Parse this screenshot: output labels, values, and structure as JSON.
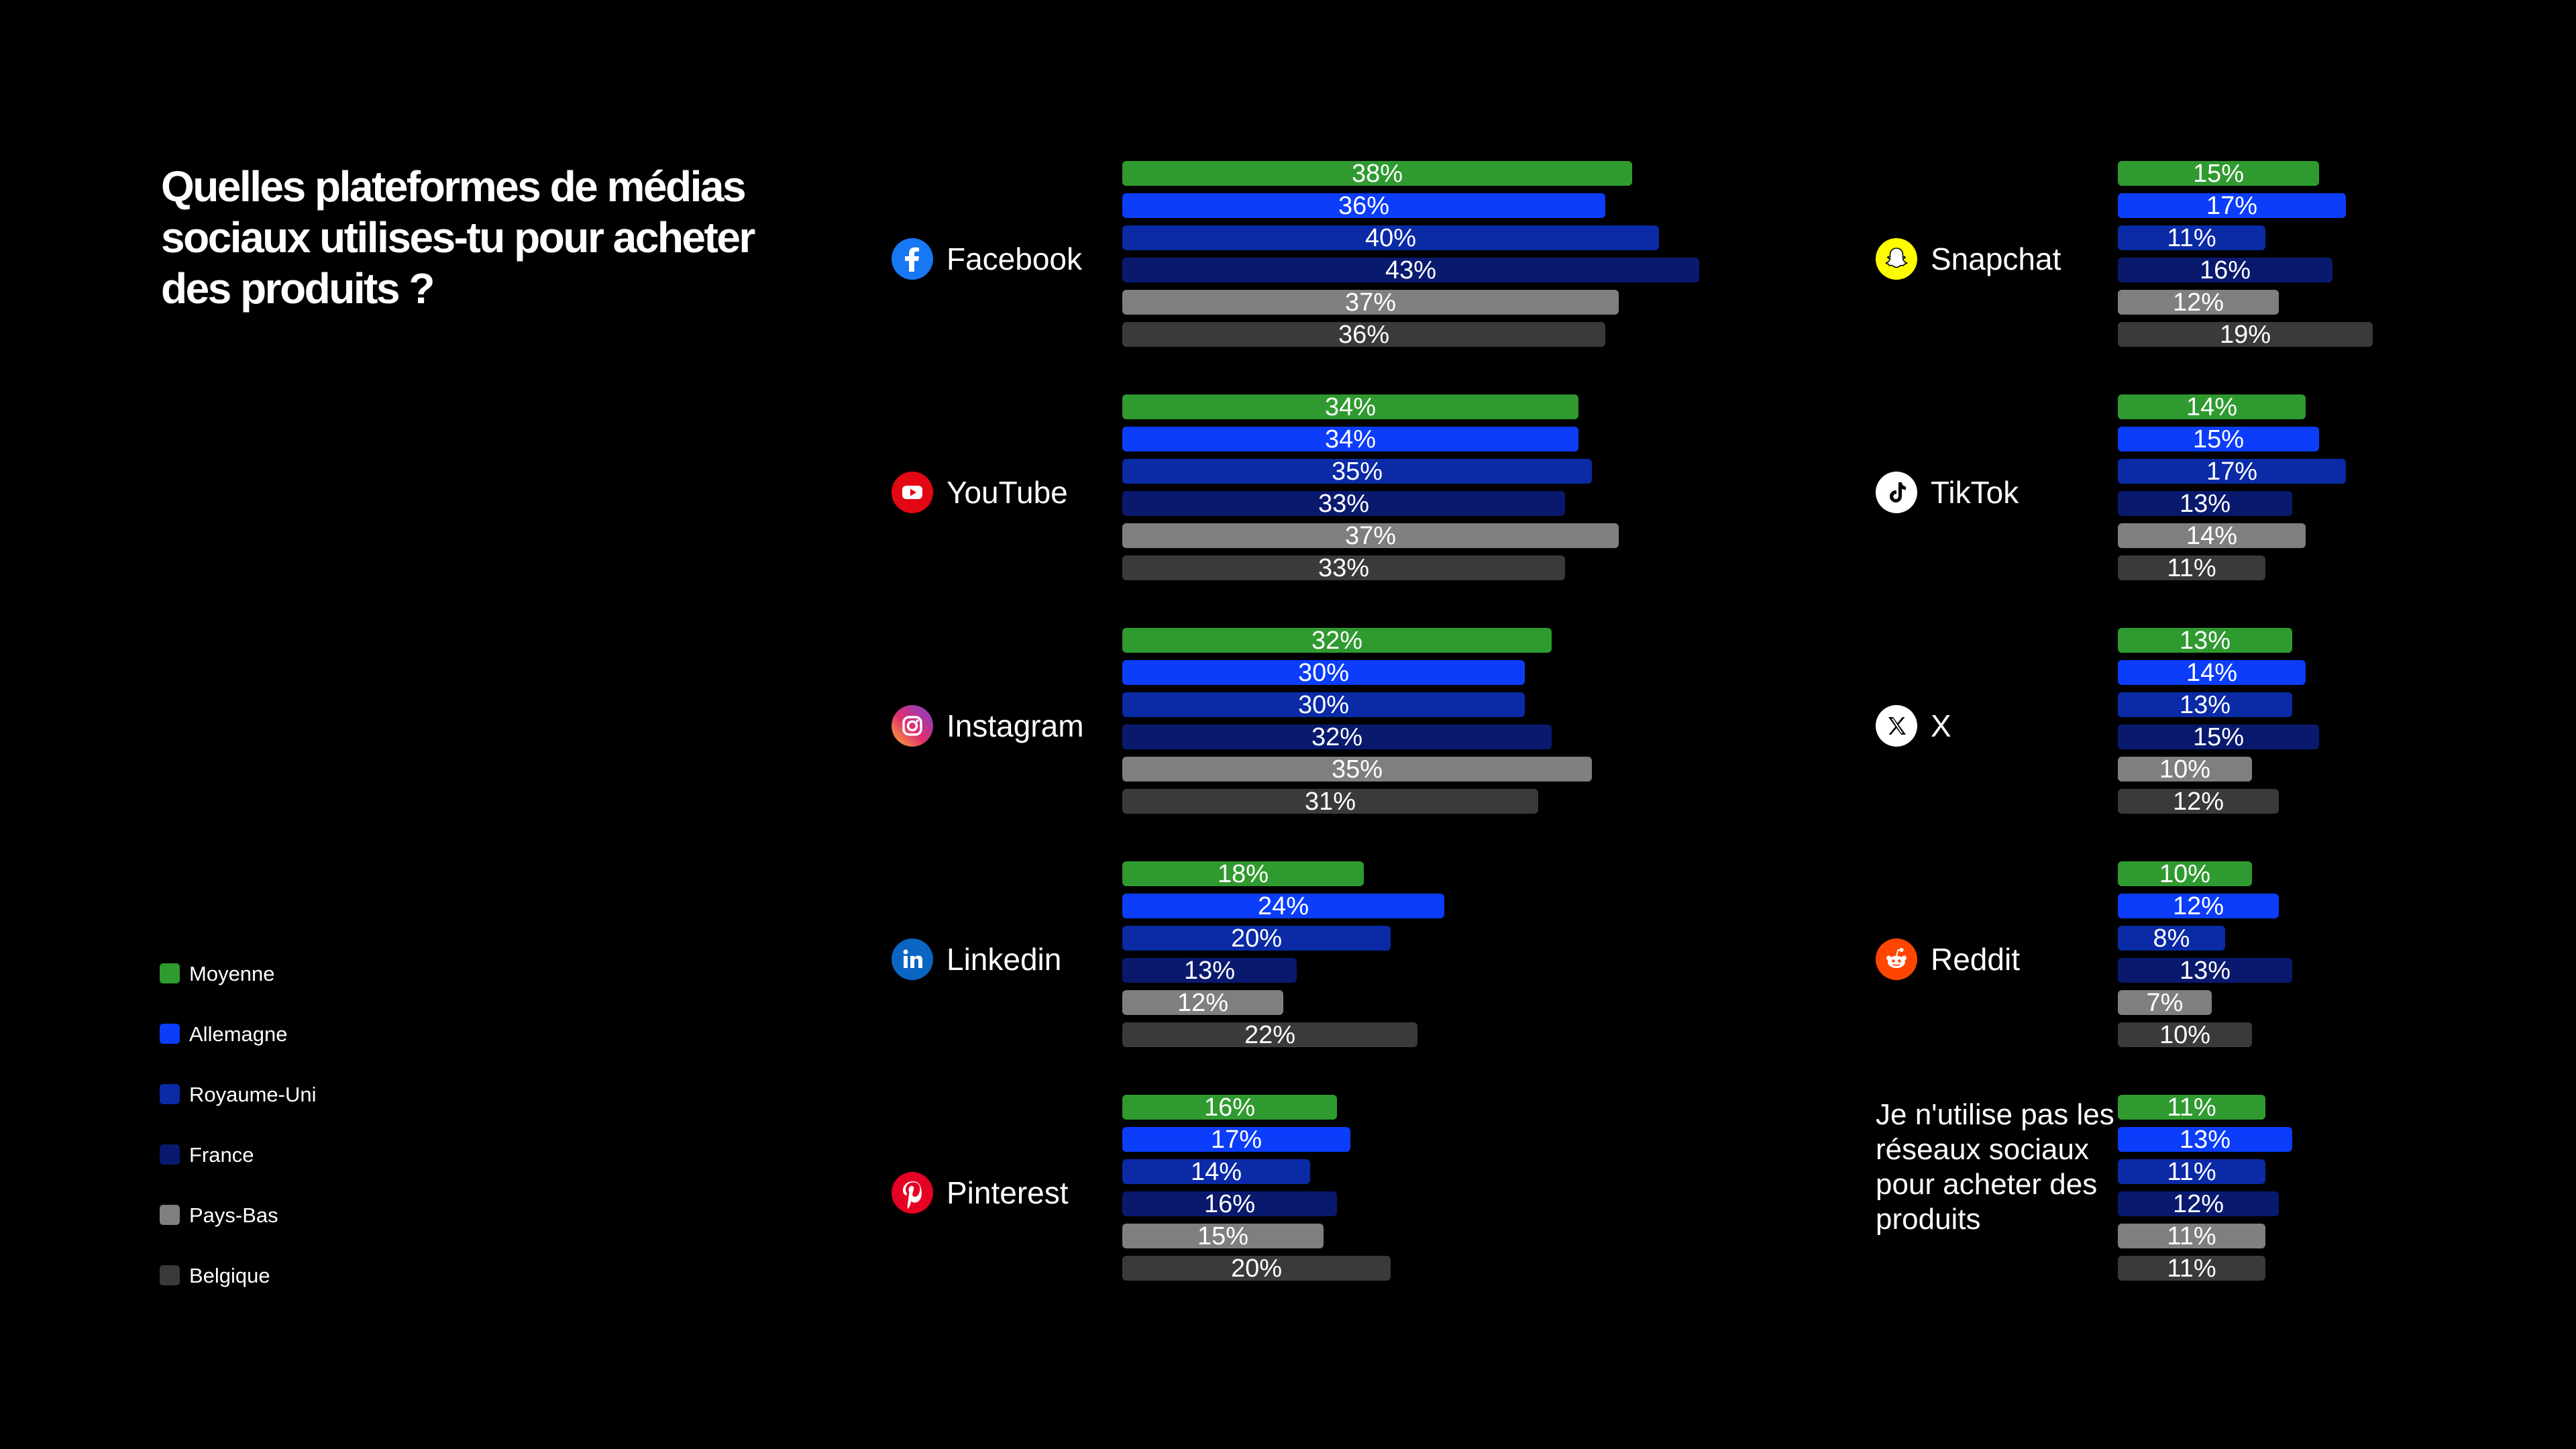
{
  "title": "Quelles plateformes de médias sociaux utilises-tu pour acheter des produits ?",
  "colors": {
    "Moyenne": "#2f9a2f",
    "Allemagne": "#0b3dfa",
    "Royaume-Uni": "#0a2aa6",
    "France": "#091a6e",
    "Pays-Bas": "#7f7f7f",
    "Belgique": "#3a3a3a"
  },
  "legend": [
    "Moyenne",
    "Allemagne",
    "Royaume-Uni",
    "France",
    "Pays-Bas",
    "Belgique"
  ],
  "chart_data": {
    "type": "bar",
    "orientation": "horizontal",
    "title": "Quelles plateformes de médias sociaux utilises-tu pour acheter des produits ?",
    "value_unit": "%",
    "series_names": [
      "Moyenne",
      "Allemagne",
      "Royaume-Uni",
      "France",
      "Pays-Bas",
      "Belgique"
    ],
    "categories": [
      {
        "name": "Facebook",
        "icon": "facebook-icon",
        "values": [
          38,
          36,
          40,
          43,
          37,
          36
        ]
      },
      {
        "name": "YouTube",
        "icon": "youtube-icon",
        "values": [
          34,
          34,
          35,
          33,
          37,
          33
        ]
      },
      {
        "name": "Instagram",
        "icon": "instagram-icon",
        "values": [
          32,
          30,
          30,
          32,
          35,
          31
        ]
      },
      {
        "name": "Linkedin",
        "icon": "linkedin-icon",
        "values": [
          18,
          24,
          20,
          13,
          12,
          22
        ]
      },
      {
        "name": "Pinterest",
        "icon": "pinterest-icon",
        "values": [
          16,
          17,
          14,
          16,
          15,
          20
        ]
      },
      {
        "name": "Snapchat",
        "icon": "snapchat-icon",
        "values": [
          15,
          17,
          11,
          16,
          12,
          19
        ]
      },
      {
        "name": "TikTok",
        "icon": "tiktok-icon",
        "values": [
          14,
          15,
          17,
          13,
          14,
          11
        ]
      },
      {
        "name": "X",
        "icon": "x-icon",
        "values": [
          13,
          14,
          13,
          15,
          10,
          12
        ]
      },
      {
        "name": "Reddit",
        "icon": "reddit-icon",
        "values": [
          10,
          12,
          8,
          13,
          7,
          10
        ]
      },
      {
        "name": "Je n'utilise pas les réseaux sociaux pour acheter des produits",
        "icon": "",
        "values": [
          11,
          13,
          11,
          12,
          11,
          11
        ]
      }
    ]
  }
}
